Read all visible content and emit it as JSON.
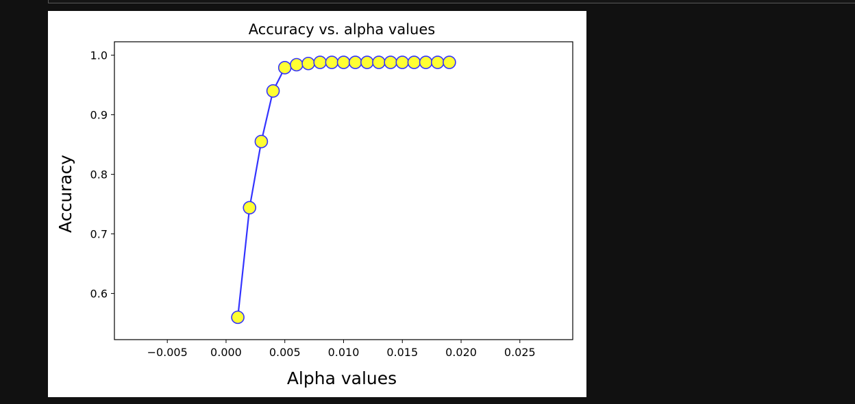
{
  "chart_data": {
    "type": "line",
    "title": "Accuracy vs. alpha values",
    "xlabel": "Alpha values",
    "ylabel": "Accuracy",
    "xlim": [
      -0.0095,
      0.0295
    ],
    "ylim": [
      0.5225,
      1.0225
    ],
    "xticks": [
      -0.005,
      0.0,
      0.005,
      0.01,
      0.015,
      0.02,
      0.025
    ],
    "xtick_labels": [
      "−0.005",
      "0.000",
      "0.005",
      "0.010",
      "0.015",
      "0.020",
      "0.025"
    ],
    "yticks": [
      0.6,
      0.7,
      0.8,
      0.9,
      1.0
    ],
    "ytick_labels": [
      "0.6",
      "0.7",
      "0.8",
      "0.9",
      "1.0"
    ],
    "grid": false,
    "series": [
      {
        "line_color": "#3333ff",
        "marker_face_color": "#ffff33",
        "marker_edge_color": "#3333ff",
        "x": [
          0.001,
          0.002,
          0.003,
          0.004,
          0.005,
          0.006,
          0.007,
          0.008,
          0.009,
          0.01,
          0.011,
          0.012,
          0.013,
          0.014,
          0.015,
          0.016,
          0.017,
          0.018,
          0.019
        ],
        "y": [
          0.56,
          0.744,
          0.855,
          0.94,
          0.979,
          0.984,
          0.986,
          0.988,
          0.988,
          0.988,
          0.988,
          0.988,
          0.988,
          0.988,
          0.988,
          0.988,
          0.988,
          0.988,
          0.988
        ]
      }
    ]
  }
}
